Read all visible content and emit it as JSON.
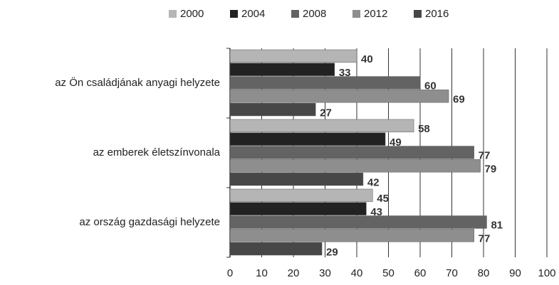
{
  "chart_data": {
    "type": "bar",
    "orientation": "horizontal",
    "categories": [
      "az Ön családjának anyagi helyzete",
      "az emberek életszínvonala",
      "az ország gazdasági helyzete"
    ],
    "series": [
      {
        "name": "2000",
        "color": "#b5b5b5",
        "values": [
          40,
          58,
          45
        ]
      },
      {
        "name": "2004",
        "color": "#222222",
        "values": [
          33,
          49,
          43
        ]
      },
      {
        "name": "2008",
        "color": "#636363",
        "values": [
          60,
          77,
          81
        ]
      },
      {
        "name": "2012",
        "color": "#8e8e8e",
        "values": [
          69,
          79,
          77
        ]
      },
      {
        "name": "2016",
        "color": "#474747",
        "values": [
          27,
          42,
          29
        ]
      }
    ],
    "xlim": [
      0,
      100
    ],
    "xticks": [
      0,
      10,
      20,
      30,
      40,
      50,
      60,
      70,
      80,
      90,
      100
    ],
    "grid": true,
    "legend": "top"
  }
}
